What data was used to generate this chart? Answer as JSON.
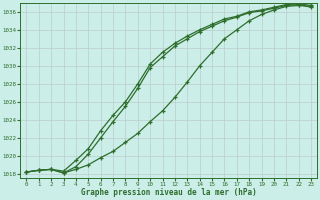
{
  "title": "Graphe pression niveau de la mer (hPa)",
  "background_color": "#cceee8",
  "grid_color": "#bbcccc",
  "line_color": "#2d6e2d",
  "xlim": [
    0,
    23
  ],
  "ylim": [
    1017.5,
    1037.0
  ],
  "xticks": [
    0,
    1,
    2,
    3,
    4,
    5,
    6,
    7,
    8,
    9,
    10,
    11,
    12,
    13,
    14,
    15,
    16,
    17,
    18,
    19,
    20,
    21,
    22,
    23
  ],
  "yticks": [
    1018,
    1020,
    1022,
    1024,
    1026,
    1028,
    1030,
    1032,
    1034,
    1036
  ],
  "line1_x": [
    0,
    1,
    2,
    3,
    4,
    5,
    6,
    7,
    8,
    9,
    10,
    11,
    12,
    13,
    14,
    15,
    16,
    17,
    18,
    19,
    20,
    21,
    22,
    23
  ],
  "line1_y": [
    1018.2,
    1018.4,
    1018.5,
    1018.3,
    1019.5,
    1020.8,
    1022.8,
    1024.5,
    1026.0,
    1028.0,
    1030.2,
    1031.5,
    1032.5,
    1033.3,
    1034.0,
    1034.6,
    1035.2,
    1035.5,
    1036.0,
    1036.2,
    1036.5,
    1036.8,
    1036.9,
    1036.7
  ],
  "line2_x": [
    0,
    1,
    2,
    3,
    4,
    5,
    6,
    7,
    8,
    9,
    10,
    11,
    12,
    13,
    14,
    15,
    16,
    17,
    18,
    19,
    20,
    21,
    22,
    23
  ],
  "line2_y": [
    1018.2,
    1018.4,
    1018.5,
    1018.1,
    1018.8,
    1020.2,
    1022.0,
    1023.8,
    1025.5,
    1027.5,
    1029.8,
    1031.0,
    1032.2,
    1033.0,
    1033.8,
    1034.4,
    1035.0,
    1035.4,
    1035.9,
    1036.1,
    1036.4,
    1036.7,
    1036.8,
    1036.5
  ],
  "line3_x": [
    0,
    1,
    2,
    3,
    4,
    5,
    6,
    7,
    8,
    9,
    10,
    11,
    12,
    13,
    14,
    15,
    16,
    17,
    18,
    19,
    20,
    21,
    22,
    23
  ],
  "line3_y": [
    1018.2,
    1018.4,
    1018.5,
    1018.1,
    1018.5,
    1019.0,
    1019.8,
    1020.5,
    1021.5,
    1022.5,
    1023.8,
    1025.0,
    1026.5,
    1028.2,
    1030.0,
    1031.5,
    1033.0,
    1034.0,
    1035.0,
    1035.7,
    1036.2,
    1036.6,
    1036.7,
    1036.6
  ]
}
